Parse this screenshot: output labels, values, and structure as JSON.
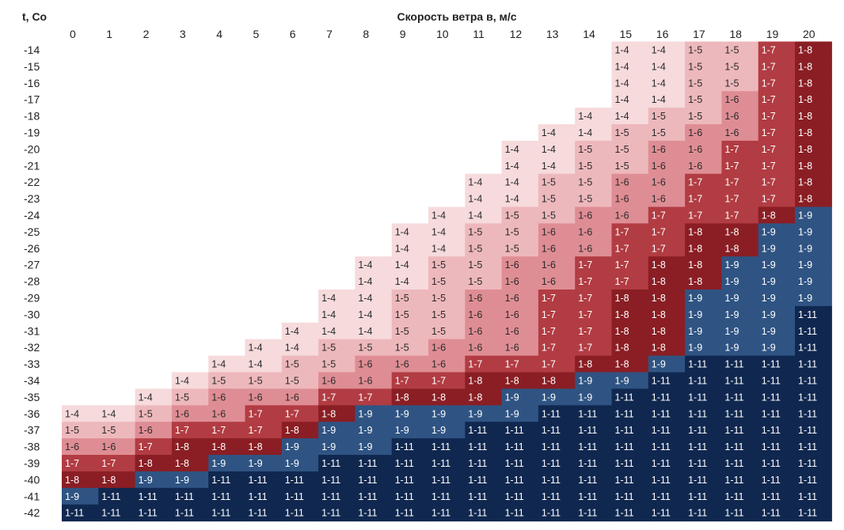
{
  "chart_data": {
    "type": "heatmap",
    "title": "Скорость ветра в, м/с",
    "ylabel": "t, Co",
    "x": [
      0,
      1,
      2,
      3,
      4,
      5,
      6,
      7,
      8,
      9,
      10,
      11,
      12,
      13,
      14,
      15,
      16,
      17,
      18,
      19,
      20
    ],
    "y": [
      -14,
      -15,
      -16,
      -17,
      -18,
      -19,
      -20,
      -21,
      -22,
      -23,
      -24,
      -25,
      -26,
      -27,
      -28,
      -29,
      -30,
      -31,
      -32,
      -33,
      -34,
      -35,
      -36,
      -37,
      -38,
      -39,
      -40,
      -41,
      -42
    ],
    "category_colors": {
      "1-4": "#f6dadc",
      "1-5": "#edb8bc",
      "1-6": "#df8d94",
      "1-7": "#b23c43",
      "1-8": "#8a1e24",
      "1-9": "#2f5483",
      "1-11": "#102850"
    },
    "cells": [
      [
        0,
        0,
        0,
        0,
        0,
        0,
        0,
        0,
        0,
        0,
        0,
        0,
        0,
        0,
        0,
        "1-4",
        "1-4",
        "1-5",
        "1-5",
        "1-7",
        "1-8"
      ],
      [
        0,
        0,
        0,
        0,
        0,
        0,
        0,
        0,
        0,
        0,
        0,
        0,
        0,
        0,
        0,
        "1-4",
        "1-4",
        "1-5",
        "1-5",
        "1-7",
        "1-8"
      ],
      [
        0,
        0,
        0,
        0,
        0,
        0,
        0,
        0,
        0,
        0,
        0,
        0,
        0,
        0,
        0,
        "1-4",
        "1-4",
        "1-5",
        "1-5",
        "1-7",
        "1-8"
      ],
      [
        0,
        0,
        0,
        0,
        0,
        0,
        0,
        0,
        0,
        0,
        0,
        0,
        0,
        0,
        0,
        "1-4",
        "1-4",
        "1-5",
        "1-6",
        "1-7",
        "1-8"
      ],
      [
        0,
        0,
        0,
        0,
        0,
        0,
        0,
        0,
        0,
        0,
        0,
        0,
        0,
        0,
        "1-4",
        "1-4",
        "1-5",
        "1-5",
        "1-6",
        "1-7",
        "1-8"
      ],
      [
        0,
        0,
        0,
        0,
        0,
        0,
        0,
        0,
        0,
        0,
        0,
        0,
        0,
        "1-4",
        "1-4",
        "1-5",
        "1-5",
        "1-6",
        "1-6",
        "1-7",
        "1-8"
      ],
      [
        0,
        0,
        0,
        0,
        0,
        0,
        0,
        0,
        0,
        0,
        0,
        0,
        "1-4",
        "1-4",
        "1-5",
        "1-5",
        "1-6",
        "1-6",
        "1-7",
        "1-7",
        "1-8"
      ],
      [
        0,
        0,
        0,
        0,
        0,
        0,
        0,
        0,
        0,
        0,
        0,
        0,
        "1-4",
        "1-4",
        "1-5",
        "1-5",
        "1-6",
        "1-6",
        "1-7",
        "1-7",
        "1-8"
      ],
      [
        0,
        0,
        0,
        0,
        0,
        0,
        0,
        0,
        0,
        0,
        0,
        "1-4",
        "1-4",
        "1-5",
        "1-5",
        "1-6",
        "1-6",
        "1-7",
        "1-7",
        "1-7",
        "1-8"
      ],
      [
        0,
        0,
        0,
        0,
        0,
        0,
        0,
        0,
        0,
        0,
        0,
        "1-4",
        "1-4",
        "1-5",
        "1-5",
        "1-6",
        "1-6",
        "1-7",
        "1-7",
        "1-7",
        "1-8"
      ],
      [
        0,
        0,
        0,
        0,
        0,
        0,
        0,
        0,
        0,
        0,
        "1-4",
        "1-4",
        "1-5",
        "1-5",
        "1-6",
        "1-6",
        "1-7",
        "1-7",
        "1-7",
        "1-8",
        "1-9"
      ],
      [
        0,
        0,
        0,
        0,
        0,
        0,
        0,
        0,
        0,
        "1-4",
        "1-4",
        "1-5",
        "1-5",
        "1-6",
        "1-6",
        "1-7",
        "1-7",
        "1-8",
        "1-8",
        "1-9",
        "1-9"
      ],
      [
        0,
        0,
        0,
        0,
        0,
        0,
        0,
        0,
        0,
        "1-4",
        "1-4",
        "1-5",
        "1-5",
        "1-6",
        "1-6",
        "1-7",
        "1-7",
        "1-8",
        "1-8",
        "1-9",
        "1-9"
      ],
      [
        0,
        0,
        0,
        0,
        0,
        0,
        0,
        0,
        "1-4",
        "1-4",
        "1-5",
        "1-5",
        "1-6",
        "1-6",
        "1-7",
        "1-7",
        "1-8",
        "1-8",
        "1-9",
        "1-9",
        "1-9"
      ],
      [
        0,
        0,
        0,
        0,
        0,
        0,
        0,
        0,
        "1-4",
        "1-4",
        "1-5",
        "1-5",
        "1-6",
        "1-6",
        "1-7",
        "1-7",
        "1-8",
        "1-8",
        "1-9",
        "1-9",
        "1-9"
      ],
      [
        0,
        0,
        0,
        0,
        0,
        0,
        0,
        "1-4",
        "1-4",
        "1-5",
        "1-5",
        "1-6",
        "1-6",
        "1-7",
        "1-7",
        "1-8",
        "1-8",
        "1-9",
        "1-9",
        "1-9",
        "1-9"
      ],
      [
        0,
        0,
        0,
        0,
        0,
        0,
        0,
        "1-4",
        "1-4",
        "1-5",
        "1-5",
        "1-6",
        "1-6",
        "1-7",
        "1-7",
        "1-8",
        "1-8",
        "1-9",
        "1-9",
        "1-9",
        "1-11"
      ],
      [
        0,
        0,
        0,
        0,
        0,
        0,
        "1-4",
        "1-4",
        "1-4",
        "1-5",
        "1-5",
        "1-6",
        "1-6",
        "1-7",
        "1-7",
        "1-8",
        "1-8",
        "1-9",
        "1-9",
        "1-9",
        "1-11"
      ],
      [
        0,
        0,
        0,
        0,
        0,
        "1-4",
        "1-4",
        "1-5",
        "1-5",
        "1-5",
        "1-6",
        "1-6",
        "1-6",
        "1-7",
        "1-7",
        "1-8",
        "1-8",
        "1-9",
        "1-9",
        "1-9",
        "1-11"
      ],
      [
        0,
        0,
        0,
        0,
        "1-4",
        "1-4",
        "1-5",
        "1-5",
        "1-6",
        "1-6",
        "1-6",
        "1-7",
        "1-7",
        "1-7",
        "1-8",
        "1-8",
        "1-9",
        "1-11",
        "1-11",
        "1-11",
        "1-11"
      ],
      [
        0,
        0,
        0,
        "1-4",
        "1-5",
        "1-5",
        "1-5",
        "1-6",
        "1-6",
        "1-7",
        "1-7",
        "1-8",
        "1-8",
        "1-8",
        "1-9",
        "1-9",
        "1-11",
        "1-11",
        "1-11",
        "1-11",
        "1-11"
      ],
      [
        0,
        0,
        "1-4",
        "1-5",
        "1-6",
        "1-6",
        "1-6",
        "1-7",
        "1-7",
        "1-8",
        "1-8",
        "1-8",
        "1-9",
        "1-9",
        "1-9",
        "1-11",
        "1-11",
        "1-11",
        "1-11",
        "1-11",
        "1-11"
      ],
      [
        "1-4",
        "1-4",
        "1-5",
        "1-6",
        "1-6",
        "1-7",
        "1-7",
        "1-8",
        "1-9",
        "1-9",
        "1-9",
        "1-9",
        "1-9",
        "1-11",
        "1-11",
        "1-11",
        "1-11",
        "1-11",
        "1-11",
        "1-11",
        "1-11"
      ],
      [
        "1-5",
        "1-5",
        "1-6",
        "1-7",
        "1-7",
        "1-7",
        "1-8",
        "1-9",
        "1-9",
        "1-9",
        "1-9",
        "1-11",
        "1-11",
        "1-11",
        "1-11",
        "1-11",
        "1-11",
        "1-11",
        "1-11",
        "1-11",
        "1-11"
      ],
      [
        "1-6",
        "1-6",
        "1-7",
        "1-8",
        "1-8",
        "1-8",
        "1-9",
        "1-9",
        "1-9",
        "1-11",
        "1-11",
        "1-11",
        "1-11",
        "1-11",
        "1-11",
        "1-11",
        "1-11",
        "1-11",
        "1-11",
        "1-11",
        "1-11"
      ],
      [
        "1-7",
        "1-7",
        "1-8",
        "1-8",
        "1-9",
        "1-9",
        "1-9",
        "1-11",
        "1-11",
        "1-11",
        "1-11",
        "1-11",
        "1-11",
        "1-11",
        "1-11",
        "1-11",
        "1-11",
        "1-11",
        "1-11",
        "1-11",
        "1-11"
      ],
      [
        "1-8",
        "1-8",
        "1-9",
        "1-9",
        "1-11",
        "1-11",
        "1-11",
        "1-11",
        "1-11",
        "1-11",
        "1-11",
        "1-11",
        "1-11",
        "1-11",
        "1-11",
        "1-11",
        "1-11",
        "1-11",
        "1-11",
        "1-11",
        "1-11"
      ],
      [
        "1-9",
        "1-11",
        "1-11",
        "1-11",
        "1-11",
        "1-11",
        "1-11",
        "1-11",
        "1-11",
        "1-11",
        "1-11",
        "1-11",
        "1-11",
        "1-11",
        "1-11",
        "1-11",
        "1-11",
        "1-11",
        "1-11",
        "1-11",
        "1-11"
      ],
      [
        "1-11",
        "1-11",
        "1-11",
        "1-11",
        "1-11",
        "1-11",
        "1-11",
        "1-11",
        "1-11",
        "1-11",
        "1-11",
        "1-11",
        "1-11",
        "1-11",
        "1-11",
        "1-11",
        "1-11",
        "1-11",
        "1-11",
        "1-11",
        "1-11"
      ]
    ]
  }
}
